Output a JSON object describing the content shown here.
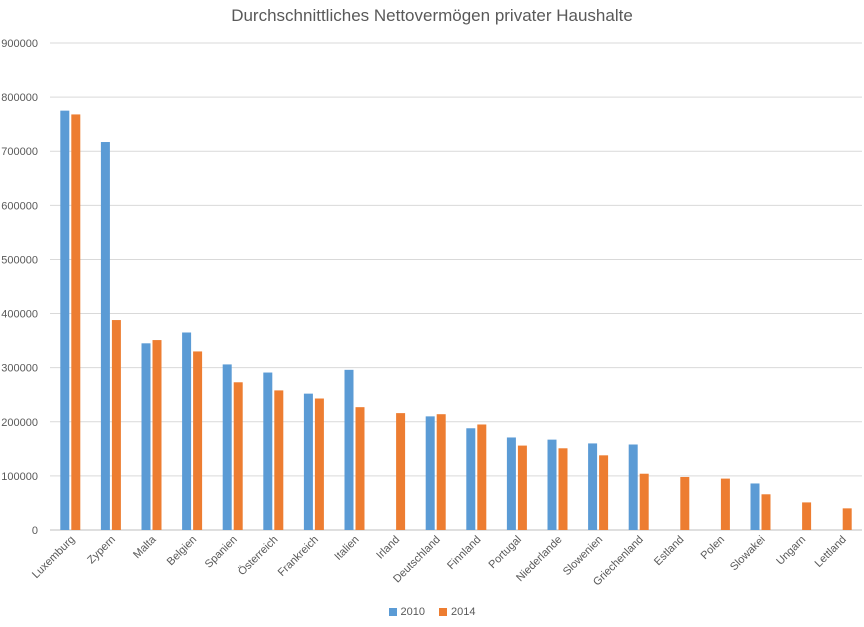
{
  "chart_data": {
    "type": "bar",
    "title": "Durchschnittliches Nettovermögen privater Haushalte",
    "xlabel": "",
    "ylabel": "",
    "ylim": [
      0,
      900000
    ],
    "yticks": [
      0,
      100000,
      200000,
      300000,
      400000,
      500000,
      600000,
      700000,
      800000,
      900000
    ],
    "grid": true,
    "legend_position": "bottom",
    "categories": [
      "Luxemburg",
      "Zypern",
      "Malta",
      "Belgien",
      "Spanien",
      "Österreich",
      "Frankreich",
      "Italien",
      "Irland",
      "Deutschland",
      "Finnland",
      "Portugal",
      "Niederlande",
      "Slowenien",
      "Griechenland",
      "Estland",
      "Polen",
      "Slowakei",
      "Ungarn",
      "Lettland"
    ],
    "series": [
      {
        "name": "2010",
        "color": "#5B9BD5",
        "values": [
          775000,
          717000,
          345000,
          365000,
          306000,
          291000,
          252000,
          296000,
          null,
          210000,
          188000,
          171000,
          167000,
          160000,
          158000,
          null,
          null,
          86000,
          null,
          null
        ]
      },
      {
        "name": "2014",
        "color": "#ED7D31",
        "values": [
          768000,
          388000,
          351000,
          330000,
          273000,
          258000,
          243000,
          227000,
          216000,
          214000,
          195000,
          156000,
          151000,
          138000,
          104000,
          98000,
          95000,
          66000,
          51000,
          40000
        ]
      }
    ]
  }
}
